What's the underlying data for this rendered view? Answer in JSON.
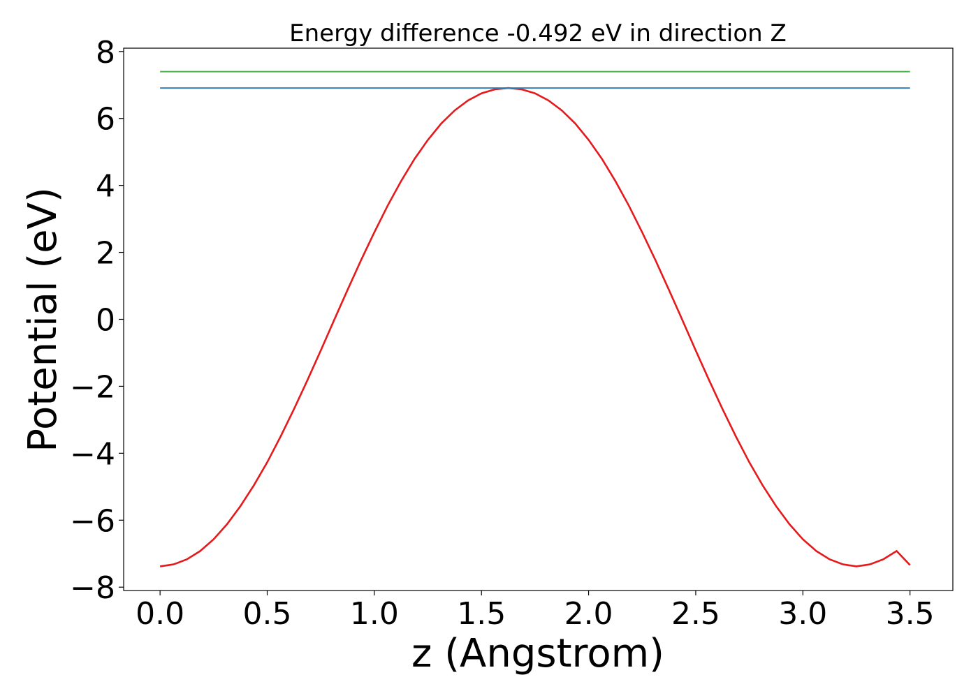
{
  "chart_data": {
    "type": "line",
    "title": "Energy difference -0.492 eV in direction Z",
    "xlabel": "z (Angstrom)",
    "ylabel": "Potential (eV)",
    "xlim": [
      -0.17,
      3.7
    ],
    "ylim": [
      -8.1,
      8.1
    ],
    "xticks": [
      0.0,
      0.5,
      1.0,
      1.5,
      2.0,
      2.5,
      3.0,
      3.5
    ],
    "xtick_labels": [
      "0.0",
      "0.5",
      "1.0",
      "1.5",
      "2.0",
      "2.5",
      "3.0",
      "3.5"
    ],
    "yticks": [
      -8,
      -6,
      -4,
      -2,
      0,
      2,
      4,
      6,
      8
    ],
    "ytick_labels": [
      "−8",
      "−6",
      "−4",
      "−2",
      "0",
      "2",
      "4",
      "6",
      "8"
    ],
    "grid": false,
    "series": [
      {
        "color": "#e41a1c",
        "x": [
          0.0,
          0.0625,
          0.125,
          0.1875,
          0.25,
          0.3125,
          0.375,
          0.4375,
          0.5,
          0.5625,
          0.625,
          0.6875,
          0.75,
          0.8125,
          0.875,
          0.9375,
          1.0,
          1.0625,
          1.125,
          1.1875,
          1.25,
          1.3125,
          1.375,
          1.4375,
          1.5,
          1.5625,
          1.625,
          1.6875,
          1.75,
          1.8125,
          1.875,
          1.9375,
          2.0,
          2.0625,
          2.125,
          2.1875,
          2.25,
          2.3125,
          2.375,
          2.4375,
          2.5,
          2.5625,
          2.625,
          2.6875,
          2.75,
          2.8125,
          2.875,
          2.9375,
          3.0,
          3.0625,
          3.125,
          3.1875,
          3.25,
          3.3125,
          3.375,
          3.4375,
          3.5
        ],
        "y": [
          -7.38,
          -7.32,
          -7.17,
          -6.92,
          -6.57,
          -6.12,
          -5.58,
          -4.96,
          -4.27,
          -3.5,
          -2.68,
          -1.82,
          -0.93,
          -0.02,
          0.88,
          1.76,
          2.6,
          3.4,
          4.13,
          4.79,
          5.36,
          5.85,
          6.24,
          6.54,
          6.75,
          6.87,
          6.91,
          6.87,
          6.75,
          6.54,
          6.24,
          5.85,
          5.36,
          4.79,
          4.13,
          3.4,
          2.6,
          1.76,
          0.88,
          -0.02,
          -0.93,
          -1.82,
          -2.68,
          -3.5,
          -4.27,
          -4.96,
          -5.58,
          -6.12,
          -6.57,
          -6.92,
          -7.17,
          -7.32,
          -7.38,
          -7.32,
          -7.17,
          -6.92,
          -7.34
        ]
      },
      {
        "color": "#377eb8",
        "x": [
          0.0,
          3.5
        ],
        "y": [
          6.91,
          6.91
        ]
      },
      {
        "color": "#4daf4a",
        "x": [
          0.0,
          3.5
        ],
        "y": [
          7.4,
          7.4
        ]
      }
    ]
  }
}
